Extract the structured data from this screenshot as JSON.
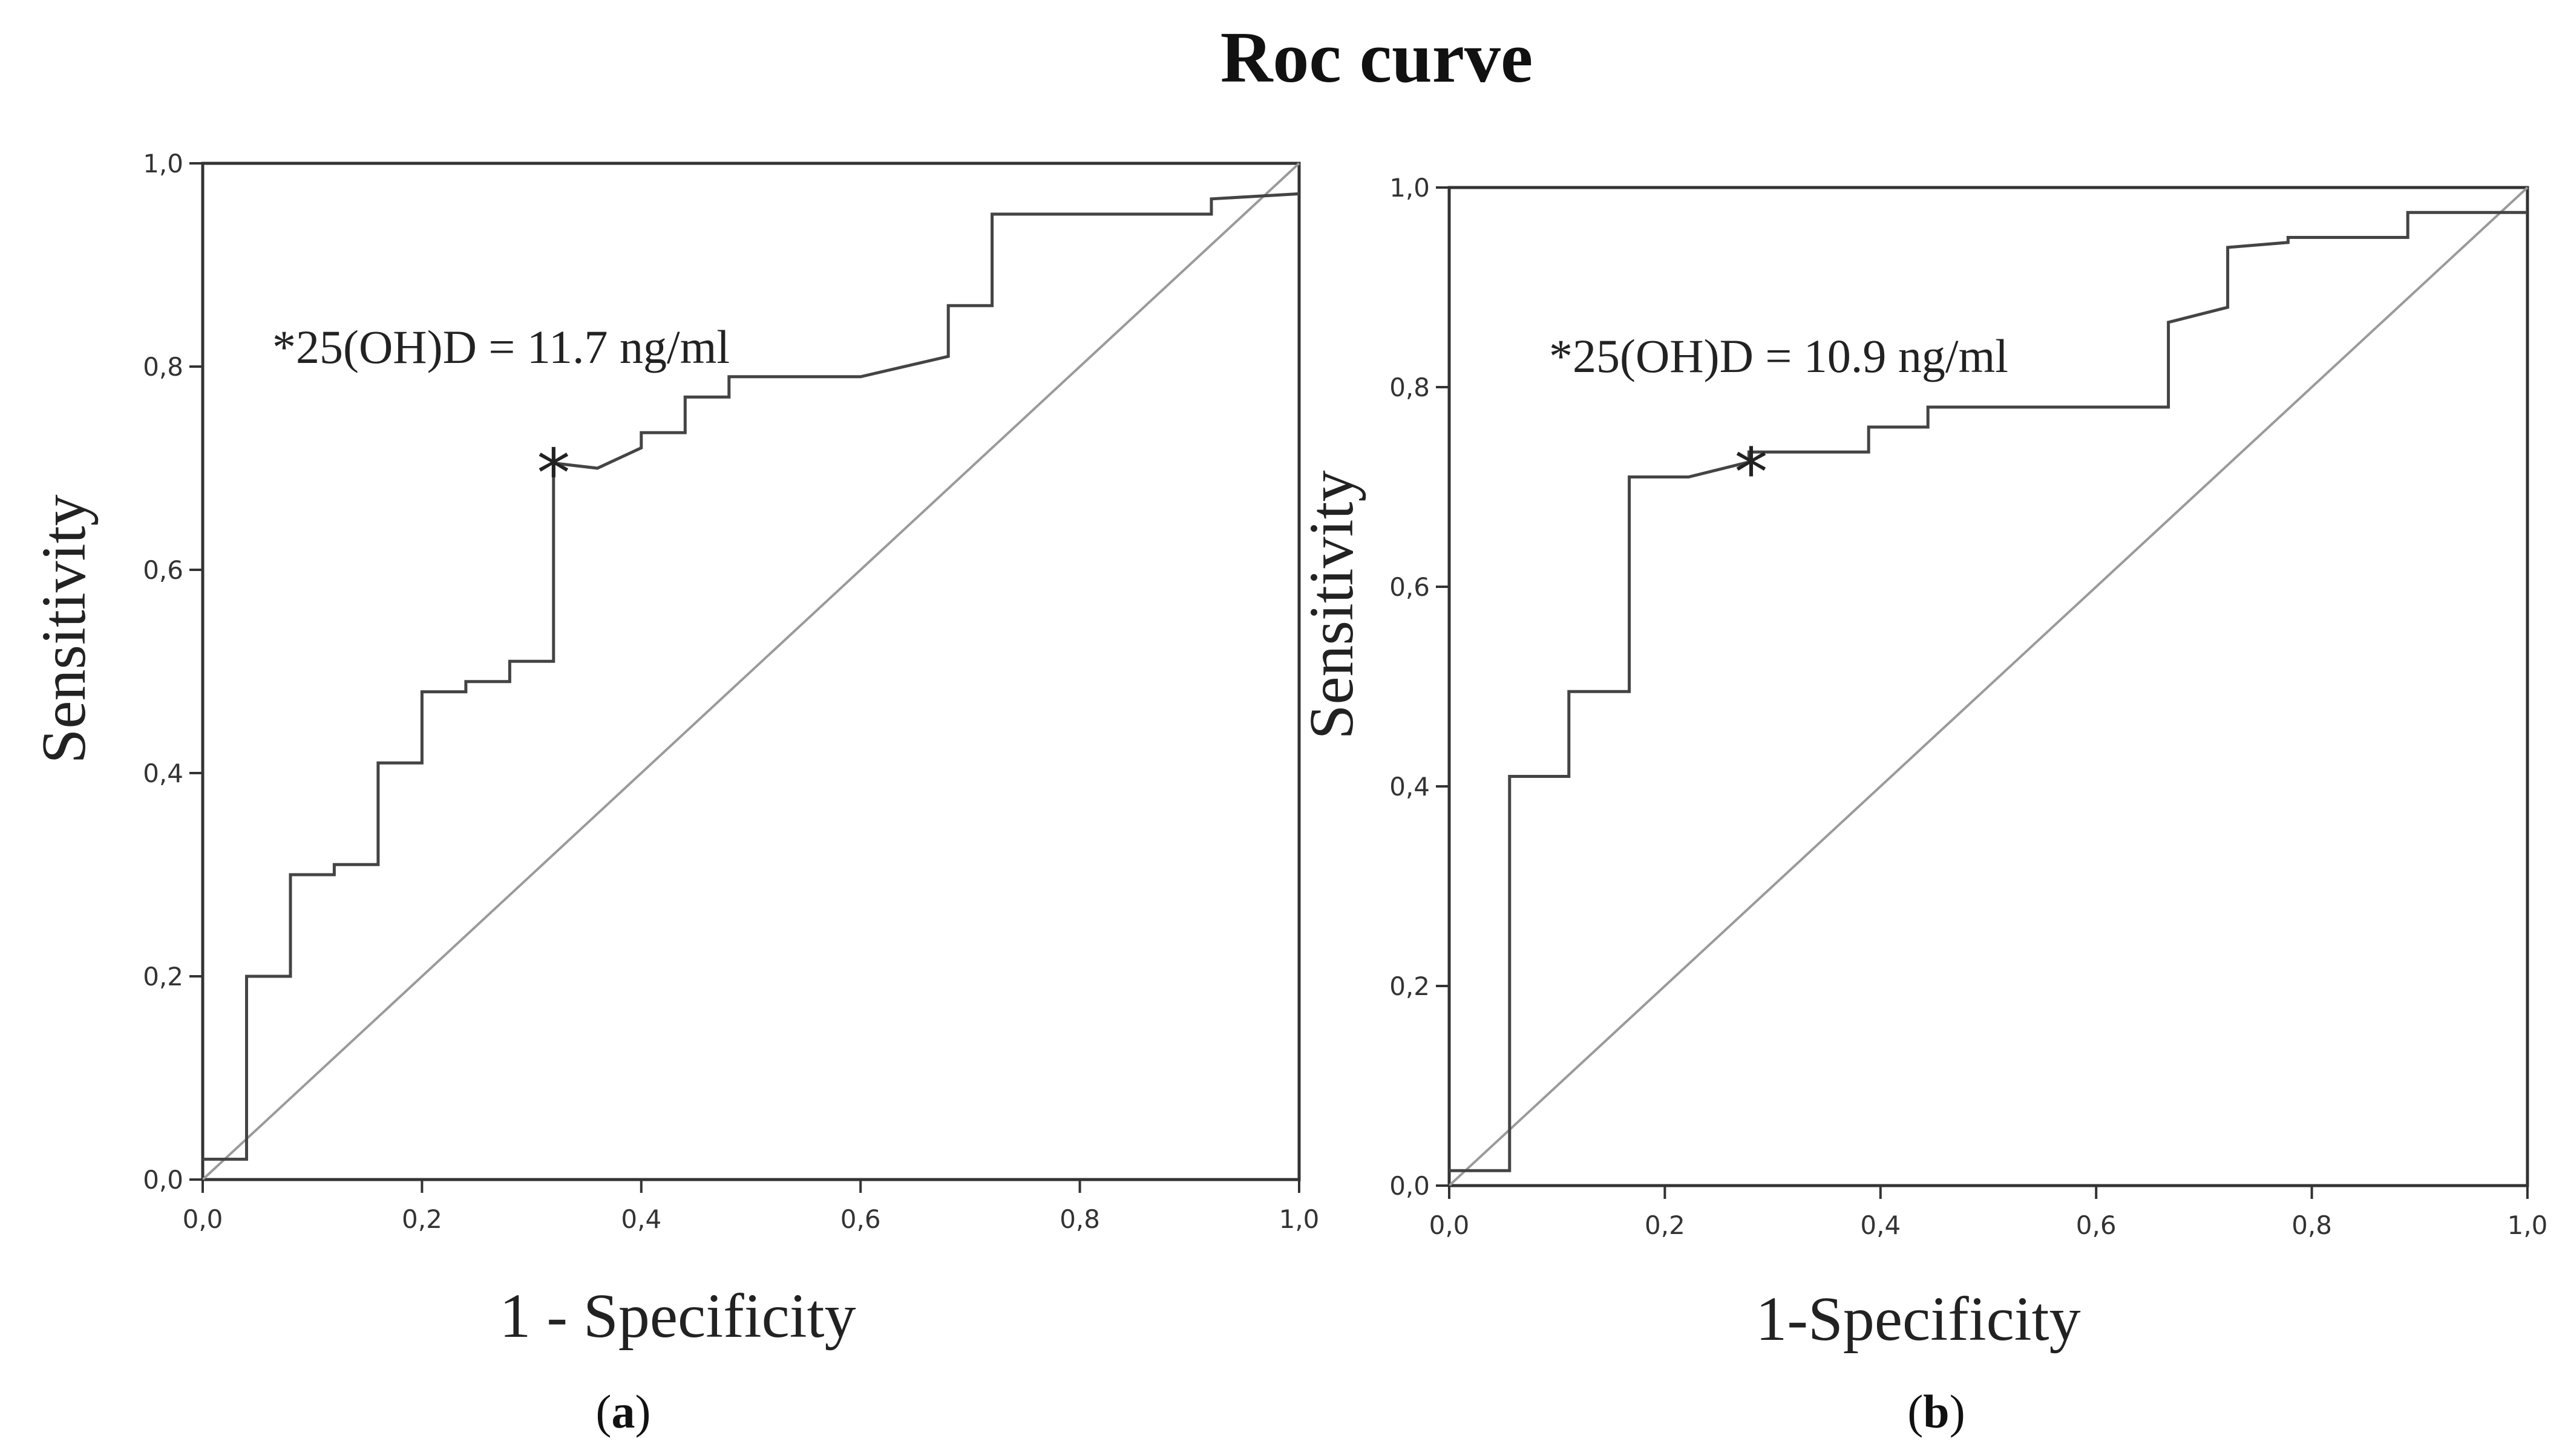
{
  "figure_title": "Roc curve",
  "colors": {
    "curve": "#444444",
    "reference": "#9a9a9a",
    "frame": "#333333",
    "text": "#222222"
  },
  "chart_data": [
    {
      "type": "line",
      "panel": "a",
      "panel_label": "a",
      "xlabel": "1 - Specificity",
      "ylabel": "Sensitivity",
      "xlim": [
        0,
        1
      ],
      "ylim": [
        0,
        1
      ],
      "x_ticks": [
        "0,0",
        "0,2",
        "0,4",
        "0,6",
        "0,8",
        "1,0"
      ],
      "y_ticks": [
        "0,0",
        "0,2",
        "0,4",
        "0,6",
        "0,8",
        "1,0"
      ],
      "annotation": "*25(OH)D = 11.7 ng/ml",
      "cutoff_point": {
        "x": 0.32,
        "y": 0.705,
        "marker": "*"
      },
      "series": [
        {
          "name": "ROC",
          "x": [
            0.0,
            0.04,
            0.04,
            0.08,
            0.08,
            0.12,
            0.12,
            0.16,
            0.16,
            0.2,
            0.2,
            0.24,
            0.24,
            0.28,
            0.28,
            0.32,
            0.32,
            0.36,
            0.4,
            0.4,
            0.44,
            0.44,
            0.48,
            0.48,
            0.6,
            0.68,
            0.68,
            0.72,
            0.72,
            0.92,
            0.92,
            1.0
          ],
          "y": [
            0.02,
            0.02,
            0.2,
            0.2,
            0.3,
            0.3,
            0.31,
            0.31,
            0.41,
            0.41,
            0.48,
            0.48,
            0.49,
            0.49,
            0.51,
            0.51,
            0.705,
            0.7,
            0.72,
            0.735,
            0.735,
            0.77,
            0.77,
            0.79,
            0.79,
            0.81,
            0.86,
            0.86,
            0.95,
            0.95,
            0.965,
            0.97
          ]
        },
        {
          "name": "Reference",
          "x": [
            0,
            1
          ],
          "y": [
            0,
            1
          ]
        }
      ]
    },
    {
      "type": "line",
      "panel": "b",
      "panel_label": "b",
      "xlabel": "1-Specificity",
      "ylabel": "Sensitivity",
      "xlim": [
        0,
        1
      ],
      "ylim": [
        0,
        1
      ],
      "x_ticks": [
        "0,0",
        "0,2",
        "0,4",
        "0,6",
        "0,8",
        "1,0"
      ],
      "y_ticks": [
        "0,0",
        "0,2",
        "0,4",
        "0,6",
        "0,8",
        "1,0"
      ],
      "annotation": "*25(OH)D = 10.9 ng/ml",
      "cutoff_point": {
        "x": 0.28,
        "y": 0.725,
        "marker": "*"
      },
      "series": [
        {
          "name": "ROC",
          "x": [
            0.0,
            0.056,
            0.056,
            0.111,
            0.111,
            0.167,
            0.167,
            0.222,
            0.278,
            0.278,
            0.389,
            0.389,
            0.444,
            0.444,
            0.5,
            0.667,
            0.667,
            0.722,
            0.722,
            0.778,
            0.778,
            0.889,
            0.889,
            1.0
          ],
          "y": [
            0.015,
            0.015,
            0.41,
            0.41,
            0.495,
            0.495,
            0.71,
            0.71,
            0.725,
            0.735,
            0.735,
            0.76,
            0.76,
            0.78,
            0.78,
            0.78,
            0.865,
            0.88,
            0.94,
            0.945,
            0.95,
            0.95,
            0.975,
            0.975
          ]
        },
        {
          "name": "Reference",
          "x": [
            0,
            1
          ],
          "y": [
            0,
            1
          ]
        }
      ]
    }
  ]
}
